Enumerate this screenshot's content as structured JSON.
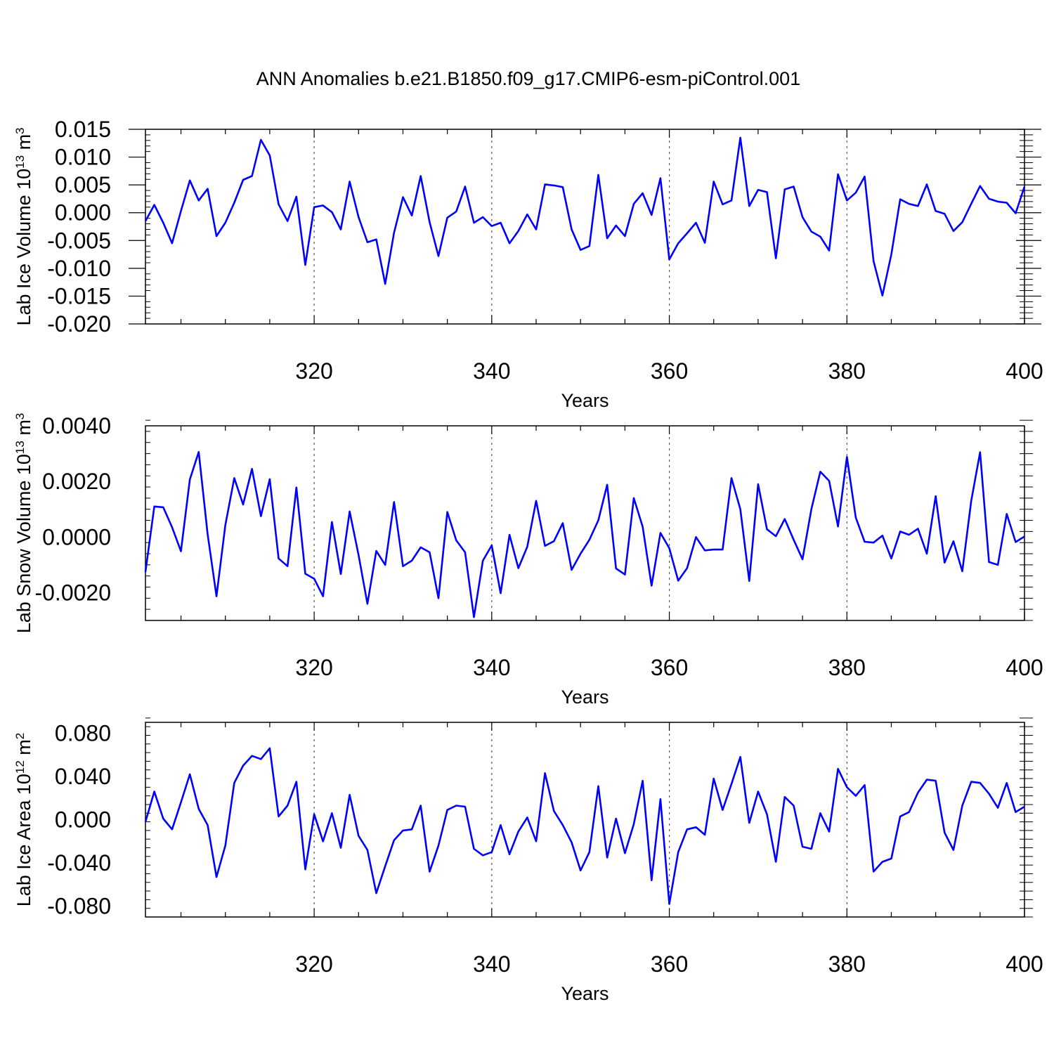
{
  "figure": {
    "title": "ANN Anomalies b.e21.B1850.f09_g17.CMIP6-esm-piControl.001"
  },
  "chart_data": [
    {
      "type": "line",
      "ylabel": "Lab Ice Volume 10",
      "ylabel_exp": "13",
      "ylabel_unit": " m",
      "ylabel_unit_exp": "3",
      "xlabel": "Years",
      "xlim": [
        301,
        400
      ],
      "ylim": [
        -0.02,
        0.015
      ],
      "yticks": [
        -0.02,
        -0.015,
        -0.01,
        -0.005,
        0.0,
        0.005,
        0.01,
        0.015
      ],
      "ytick_labels": [
        "-0.020",
        "-0.015",
        "-0.010",
        "-0.005",
        "0.000",
        "0.005",
        "0.010",
        "0.015"
      ],
      "xticks": [
        320,
        340,
        360,
        380,
        400
      ],
      "xtick_labels": [
        "320",
        "340",
        "360",
        "380",
        "400"
      ],
      "grid": "dashed vertical at major x ticks",
      "line_color": "#0000ff",
      "series": [
        {
          "x": [
            301,
            302,
            303,
            304,
            305,
            306,
            307,
            308,
            309,
            310,
            311,
            312,
            313,
            314,
            315,
            316,
            317,
            318,
            319,
            320,
            321,
            322,
            323,
            324,
            325,
            326,
            327,
            328,
            329,
            330,
            331,
            332,
            333,
            334,
            335,
            336,
            337,
            338,
            339,
            340,
            341,
            342,
            343,
            344,
            345,
            346,
            347,
            348,
            349,
            350,
            351,
            352,
            353,
            354,
            355,
            356,
            357,
            358,
            359,
            360,
            361,
            362,
            363,
            364,
            365,
            366,
            367,
            368,
            369,
            370,
            371,
            372,
            373,
            374,
            375,
            376,
            377,
            378,
            379,
            380,
            381,
            382,
            383,
            384,
            385,
            386,
            387,
            388,
            389,
            390,
            391,
            392,
            393,
            394,
            395,
            396,
            397,
            398,
            399,
            400
          ],
          "values": [
            -0.0015,
            0.0014,
            -0.0018,
            -0.0055,
            0.0003,
            0.0058,
            0.0022,
            0.0043,
            -0.0042,
            -0.0018,
            0.0018,
            0.0059,
            0.0066,
            0.0131,
            0.0103,
            0.0015,
            -0.0015,
            0.0029,
            -0.0094,
            0.001,
            0.0013,
            0.0001,
            -0.003,
            0.0056,
            -0.0008,
            -0.0053,
            -0.0048,
            -0.0128,
            -0.0036,
            0.0028,
            -0.0005,
            0.0066,
            -0.0017,
            -0.0078,
            -0.0009,
            0.0002,
            0.0047,
            -0.0018,
            -0.0008,
            -0.0024,
            -0.0018,
            -0.0055,
            -0.0033,
            -0.0003,
            -0.003,
            0.0051,
            0.0049,
            0.0046,
            -0.003,
            -0.0067,
            -0.006,
            0.0068,
            -0.0046,
            -0.0023,
            -0.0042,
            0.0016,
            0.0035,
            -0.0004,
            0.0062,
            -0.0084,
            -0.0055,
            -0.0037,
            -0.0018,
            -0.0054,
            0.0056,
            0.0015,
            0.0022,
            0.0135,
            0.0012,
            0.0041,
            0.0037,
            -0.0082,
            0.0042,
            0.0047,
            -0.0008,
            -0.0034,
            -0.0043,
            -0.0068,
            0.0069,
            0.0022,
            0.0036,
            0.0065,
            -0.0087,
            -0.0149,
            -0.0075,
            0.0024,
            0.0016,
            0.0012,
            0.0051,
            0.0003,
            -0.0002,
            -0.0033,
            -0.0017,
            0.0016,
            0.0048,
            0.0025,
            0.002,
            0.0018,
            -0.0001,
            0.0047
          ]
        }
      ]
    },
    {
      "type": "line",
      "ylabel": "Lab Snow Volume 10",
      "ylabel_exp": "13",
      "ylabel_unit": " m",
      "ylabel_unit_exp": "3",
      "xlabel": "Years",
      "xlim": [
        301,
        400
      ],
      "ylim": [
        -0.003,
        0.004
      ],
      "yticks": [
        -0.002,
        0.0,
        0.002,
        0.004
      ],
      "ytick_labels": [
        "-0.0020",
        "0.0000",
        "0.0020",
        "0.0040"
      ],
      "xticks": [
        320,
        340,
        360,
        380,
        400
      ],
      "xtick_labels": [
        "320",
        "340",
        "360",
        "380",
        "400"
      ],
      "grid": "dashed vertical at major x ticks",
      "line_color": "#0000ff",
      "series": [
        {
          "x": [
            301,
            302,
            303,
            304,
            305,
            306,
            307,
            308,
            309,
            310,
            311,
            312,
            313,
            314,
            315,
            316,
            317,
            318,
            319,
            320,
            321,
            322,
            323,
            324,
            325,
            326,
            327,
            328,
            329,
            330,
            331,
            332,
            333,
            334,
            335,
            336,
            337,
            338,
            339,
            340,
            341,
            342,
            343,
            344,
            345,
            346,
            347,
            348,
            349,
            350,
            351,
            352,
            353,
            354,
            355,
            356,
            357,
            358,
            359,
            360,
            361,
            362,
            363,
            364,
            365,
            366,
            367,
            368,
            369,
            370,
            371,
            372,
            373,
            374,
            375,
            376,
            377,
            378,
            379,
            380,
            381,
            382,
            383,
            384,
            385,
            386,
            387,
            388,
            389,
            390,
            391,
            392,
            393,
            394,
            395,
            396,
            397,
            398,
            399,
            400
          ],
          "values": [
            -0.00125,
            0.0011,
            0.00107,
            0.00035,
            -0.00051,
            0.00207,
            0.00306,
            0.0001,
            -0.00213,
            0.00043,
            0.00212,
            0.00117,
            0.00245,
            0.00075,
            0.00208,
            -0.00077,
            -0.00105,
            0.00178,
            -0.00132,
            -0.0015,
            -0.00213,
            0.00054,
            -0.00133,
            0.00092,
            -0.00065,
            -0.0024,
            -0.0005,
            -0.001,
            0.00126,
            -0.00105,
            -0.00085,
            -0.00037,
            -0.00055,
            -0.0022,
            0.0009,
            -0.00012,
            -0.00055,
            -0.00288,
            -0.00085,
            -0.0003,
            -0.00202,
            8e-05,
            -0.00112,
            -0.00035,
            0.0013,
            -0.00032,
            -0.00015,
            0.0005,
            -0.00118,
            -0.0006,
            -0.0001,
            0.0006,
            0.00188,
            -0.00113,
            -0.00135,
            0.0014,
            0.00037,
            -0.00175,
            0.00015,
            -0.0004,
            -0.00157,
            -0.00112,
            0.0,
            -0.00048,
            -0.00045,
            -0.00045,
            0.00212,
            0.001,
            -0.00158,
            0.0019,
            0.00028,
            3e-05,
            0.00065,
            -0.0001,
            -0.0008,
            0.001,
            0.00235,
            0.00202,
            0.00038,
            0.00288,
            0.0007,
            -0.00017,
            -0.0002,
            5e-05,
            -0.00077,
            0.0002,
            8e-05,
            0.0003,
            -0.0006,
            0.00147,
            -0.00092,
            -0.00015,
            -0.00123,
            0.0013,
            0.00305,
            -0.0009,
            -0.001,
            0.00083,
            -0.00018,
            2e-05
          ]
        }
      ]
    },
    {
      "type": "line",
      "ylabel": "Lab Ice Area 10",
      "ylabel_exp": "12",
      "ylabel_unit": " m",
      "ylabel_unit_exp": "2",
      "xlabel": "Years",
      "xlim": [
        301,
        400
      ],
      "ylim": [
        -0.09,
        0.09
      ],
      "yticks": [
        -0.08,
        -0.04,
        0.0,
        0.04,
        0.08
      ],
      "ytick_labels": [
        "-0.080",
        "-0.040",
        "0.000",
        "0.040",
        "0.080"
      ],
      "xticks": [
        320,
        340,
        360,
        380,
        400
      ],
      "xtick_labels": [
        "320",
        "340",
        "360",
        "380",
        "400"
      ],
      "grid": "dashed vertical at major x ticks",
      "line_color": "#0000ff",
      "series": [
        {
          "x": [
            301,
            302,
            303,
            304,
            305,
            306,
            307,
            308,
            309,
            310,
            311,
            312,
            313,
            314,
            315,
            316,
            317,
            318,
            319,
            320,
            321,
            322,
            323,
            324,
            325,
            326,
            327,
            328,
            329,
            330,
            331,
            332,
            333,
            334,
            335,
            336,
            337,
            338,
            339,
            340,
            341,
            342,
            343,
            344,
            345,
            346,
            347,
            348,
            349,
            350,
            351,
            352,
            353,
            354,
            355,
            356,
            357,
            358,
            359,
            360,
            361,
            362,
            363,
            364,
            365,
            366,
            367,
            368,
            369,
            370,
            371,
            372,
            373,
            374,
            375,
            376,
            377,
            378,
            379,
            380,
            381,
            382,
            383,
            384,
            385,
            386,
            387,
            388,
            389,
            390,
            391,
            392,
            393,
            394,
            395,
            396,
            397,
            398,
            399,
            400
          ],
          "values": [
            -0.002,
            0.026,
            0.001,
            -0.009,
            0.016,
            0.042,
            0.01,
            -0.005,
            -0.053,
            -0.024,
            0.034,
            0.05,
            0.059,
            0.056,
            0.066,
            0.003,
            0.013,
            0.035,
            -0.046,
            0.005,
            -0.02,
            0.006,
            -0.026,
            0.023,
            -0.015,
            -0.028,
            -0.068,
            -0.043,
            -0.019,
            -0.01,
            -0.009,
            0.013,
            -0.048,
            -0.024,
            0.009,
            0.013,
            0.012,
            -0.027,
            -0.033,
            -0.03,
            -0.005,
            -0.032,
            -0.011,
            0.002,
            -0.02,
            0.043,
            0.008,
            -0.005,
            -0.021,
            -0.047,
            -0.03,
            0.031,
            -0.035,
            0.001,
            -0.031,
            -0.004,
            0.036,
            -0.056,
            0.019,
            -0.078,
            -0.03,
            -0.009,
            -0.007,
            -0.014,
            0.038,
            0.009,
            0.033,
            0.058,
            -0.003,
            0.026,
            0.005,
            -0.039,
            0.021,
            0.013,
            -0.025,
            -0.027,
            0.006,
            -0.011,
            0.047,
            0.03,
            0.022,
            0.032,
            -0.048,
            -0.039,
            -0.036,
            0.003,
            0.007,
            0.025,
            0.037,
            0.036,
            -0.012,
            -0.028,
            0.013,
            0.035,
            0.034,
            0.024,
            0.011,
            0.034,
            0.007,
            0.012
          ]
        }
      ]
    }
  ]
}
